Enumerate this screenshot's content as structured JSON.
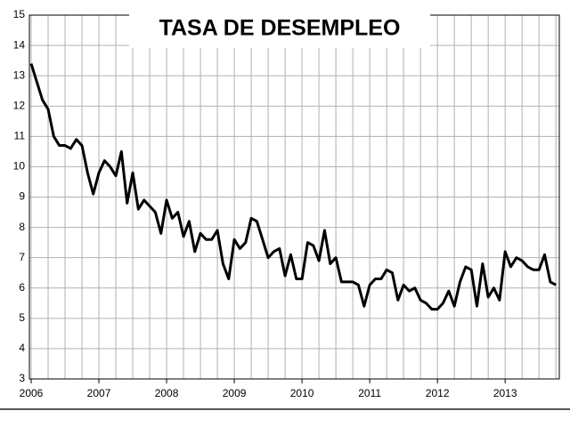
{
  "chart_data": {
    "type": "line",
    "title": "TASA DE DESEMPLEO",
    "x": [
      2006,
      2006.083,
      2006.167,
      2006.25,
      2006.333,
      2006.417,
      2006.5,
      2006.583,
      2006.667,
      2006.75,
      2006.833,
      2006.917,
      2007,
      2007.083,
      2007.167,
      2007.25,
      2007.333,
      2007.417,
      2007.5,
      2007.583,
      2007.667,
      2007.75,
      2007.833,
      2007.917,
      2008,
      2008.083,
      2008.167,
      2008.25,
      2008.333,
      2008.417,
      2008.5,
      2008.583,
      2008.667,
      2008.75,
      2008.833,
      2008.917,
      2009,
      2009.083,
      2009.167,
      2009.25,
      2009.333,
      2009.417,
      2009.5,
      2009.583,
      2009.667,
      2009.75,
      2009.833,
      2009.917,
      2010,
      2010.083,
      2010.167,
      2010.25,
      2010.333,
      2010.417,
      2010.5,
      2010.583,
      2010.667,
      2010.75,
      2010.833,
      2010.917,
      2011,
      2011.083,
      2011.167,
      2011.25,
      2011.333,
      2011.417,
      2011.5,
      2011.583,
      2011.667,
      2011.75,
      2011.833,
      2011.917,
      2012,
      2012.083,
      2012.167,
      2012.25,
      2012.333,
      2012.417,
      2012.5,
      2012.583,
      2012.667,
      2012.75,
      2012.833,
      2012.917,
      2013,
      2013.083,
      2013.167,
      2013.25,
      2013.333,
      2013.417,
      2013.5,
      2013.583,
      2013.667,
      2013.75
    ],
    "series": [
      {
        "name": "Tasa de desempleo",
        "color": "#000000",
        "values": [
          13.4,
          12.8,
          12.2,
          11.9,
          11.0,
          10.7,
          10.7,
          10.6,
          10.9,
          10.7,
          9.8,
          9.1,
          9.8,
          10.2,
          10.0,
          9.7,
          10.5,
          8.8,
          9.8,
          8.6,
          8.9,
          8.7,
          8.5,
          7.8,
          8.9,
          8.3,
          8.5,
          7.7,
          8.2,
          7.2,
          7.8,
          7.6,
          7.6,
          7.9,
          6.8,
          6.3,
          7.6,
          7.3,
          7.5,
          8.3,
          8.2,
          7.6,
          7.0,
          7.2,
          7.3,
          6.4,
          7.1,
          6.3,
          6.3,
          7.5,
          7.4,
          6.9,
          7.9,
          6.8,
          7.0,
          6.2,
          6.2,
          6.2,
          6.1,
          5.4,
          6.1,
          6.3,
          6.3,
          6.6,
          6.5,
          5.6,
          6.1,
          5.9,
          6.0,
          5.6,
          5.5,
          5.3,
          5.3,
          5.5,
          5.9,
          5.4,
          6.2,
          6.7,
          6.6,
          5.4,
          6.8,
          5.7,
          6.0,
          5.6,
          7.2,
          6.7,
          7.0,
          6.9,
          6.7,
          6.6,
          6.6,
          7.1,
          6.2,
          6.1
        ]
      }
    ],
    "xlim": [
      2006,
      2013.8
    ],
    "xticks": [
      2006,
      2007,
      2008,
      2009,
      2010,
      2011,
      2012,
      2013
    ],
    "ylim": [
      3,
      15
    ],
    "yticks": [
      3,
      4,
      5,
      6,
      7,
      8,
      9,
      10,
      11,
      12,
      13,
      14,
      15
    ],
    "grid": true,
    "xgrid_divisions": 4
  }
}
